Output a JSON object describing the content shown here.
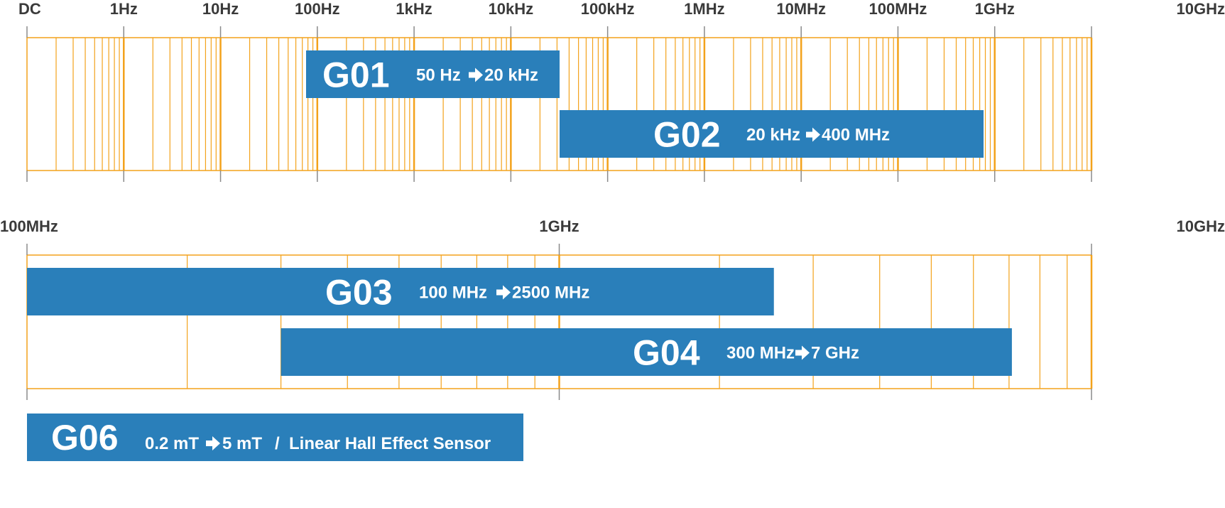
{
  "colors": {
    "band_fill": "#2a7fba",
    "band_text": "#ffffff",
    "grid_line": "#f3a21b",
    "axis_tick": "#8a8a8a",
    "label_text": "#3a3a3a"
  },
  "chart_data": [
    {
      "type": "range-chart",
      "scale": "log",
      "title": "",
      "xlabel": "",
      "ylabel": "",
      "grid": true,
      "xlim_label": [
        "DC",
        "10GHz"
      ],
      "ticks": [
        {
          "label": "DC",
          "hz": 0
        },
        {
          "label": "1Hz",
          "hz": 1
        },
        {
          "label": "10Hz",
          "hz": 10
        },
        {
          "label": "100Hz",
          "hz": 100
        },
        {
          "label": "1kHz",
          "hz": 1000
        },
        {
          "label": "10kHz",
          "hz": 10000
        },
        {
          "label": "100kHz",
          "hz": 100000
        },
        {
          "label": "1MHz",
          "hz": 1000000
        },
        {
          "label": "10MHz",
          "hz": 10000000
        },
        {
          "label": "100MHz",
          "hz": 100000000
        },
        {
          "label": "1GHz",
          "hz": 1000000000
        },
        {
          "label": "10GHz",
          "hz": 10000000000
        }
      ],
      "bands": [
        {
          "code": "G01",
          "range_from": "50 Hz",
          "range_to": "20 kHz",
          "start_hz": 50,
          "end_hz": 20000,
          "row": 1
        },
        {
          "code": "G02",
          "range_from": "20 kHz",
          "range_to": "400 MHz",
          "start_hz": 20000,
          "end_hz": 400000000,
          "row": 2
        }
      ]
    },
    {
      "type": "range-chart",
      "scale": "log",
      "title": "",
      "xlabel": "",
      "ylabel": "",
      "grid": true,
      "ticks": [
        {
          "label": "100MHz",
          "hz": 100000000
        },
        {
          "label": "1GHz",
          "hz": 1000000000
        },
        {
          "label": "10GHz",
          "hz": 10000000000
        }
      ],
      "bands": [
        {
          "code": "G03",
          "range_from": "100 MHz",
          "range_to": "2500 MHz",
          "start_hz": 100000000,
          "end_hz": 2500000000,
          "row": 1
        },
        {
          "code": "G04",
          "range_from": "300 MHz",
          "range_to": "7 GHz",
          "start_hz": 300000000,
          "end_hz": 7000000000,
          "row": 2
        }
      ]
    }
  ],
  "sensor_band": {
    "code": "G06",
    "range_from": "0.2 mT",
    "range_to": "5 mT",
    "separator": "/",
    "description": "Linear Hall Effect Sensor"
  }
}
